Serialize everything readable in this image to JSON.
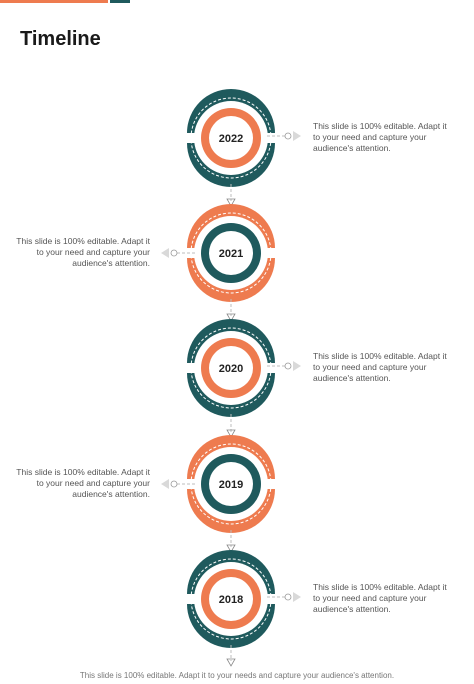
{
  "title": "Timeline",
  "colors": {
    "teal": "#1f5a5d",
    "orange": "#ee7b4f",
    "connector": "#bdbdbd",
    "text": "#555555"
  },
  "milestones": [
    {
      "year": "2022",
      "text": "This slide is 100% editable. Adapt it to your need and capture your audience's attention.",
      "side": "right",
      "outer_color": "teal",
      "inner_color": "orange"
    },
    {
      "year": "2021",
      "text": "This slide is 100% editable. Adapt it to your need and capture your audience's attention.",
      "side": "left",
      "outer_color": "orange",
      "inner_color": "teal"
    },
    {
      "year": "2020",
      "text": "This slide is 100% editable. Adapt it to your need and capture your audience's attention.",
      "side": "right",
      "outer_color": "teal",
      "inner_color": "orange"
    },
    {
      "year": "2019",
      "text": "This slide is 100% editable. Adapt it to your need and capture your audience's attention.",
      "side": "left",
      "outer_color": "orange",
      "inner_color": "teal"
    },
    {
      "year": "2018",
      "text": "This slide is 100% editable. Adapt it to your need and capture your audience's attention.",
      "side": "right",
      "outer_color": "teal",
      "inner_color": "orange"
    }
  ],
  "footer": "This slide is 100% editable. Adapt it to your needs and capture your audience's attention."
}
